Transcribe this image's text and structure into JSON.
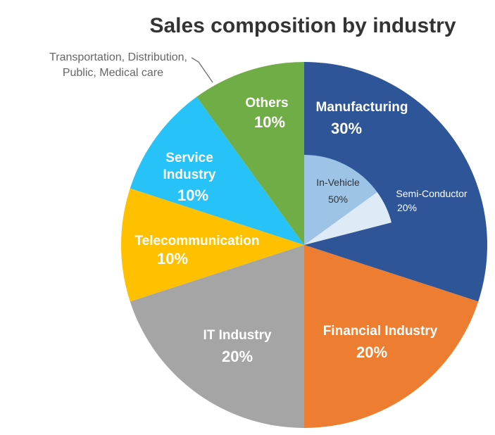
{
  "chart_data": {
    "type": "pie",
    "title": "Sales composition by industry",
    "slices": [
      {
        "key": "manufacturing",
        "label": "Manufacturing",
        "value": 30,
        "value_label": "30%",
        "color": "#2e5597"
      },
      {
        "key": "financial",
        "label": "Financial Industry",
        "value": 20,
        "value_label": "20%",
        "color": "#ed7d31"
      },
      {
        "key": "it",
        "label": "IT Industry",
        "value": 20,
        "value_label": "20%",
        "color": "#a5a5a5"
      },
      {
        "key": "telecom",
        "label": "Telecommunication",
        "value": 10,
        "value_label": "10%",
        "color": "#ffc000"
      },
      {
        "key": "service",
        "label": "Service Industry",
        "label_lines": [
          "Service",
          "Industry"
        ],
        "value": 10,
        "value_label": "10%",
        "color": "#27c2f7"
      },
      {
        "key": "others",
        "label": "Others",
        "value": 10,
        "value_label": "10%",
        "color": "#70ad47",
        "annotation_lines": [
          "Transportation, Distribution,",
          "Public, Medical care"
        ]
      }
    ],
    "sub_breakdown": {
      "parent": "Manufacturing",
      "items": [
        {
          "key": "in_vehicle",
          "label": "In-Vehicle",
          "value": 50,
          "value_label": "50%",
          "color": "#9dc3e6"
        },
        {
          "key": "semi",
          "label": "Semi-Conductor",
          "value": 20,
          "value_label": "20%",
          "color": "#deebf7"
        }
      ]
    }
  }
}
